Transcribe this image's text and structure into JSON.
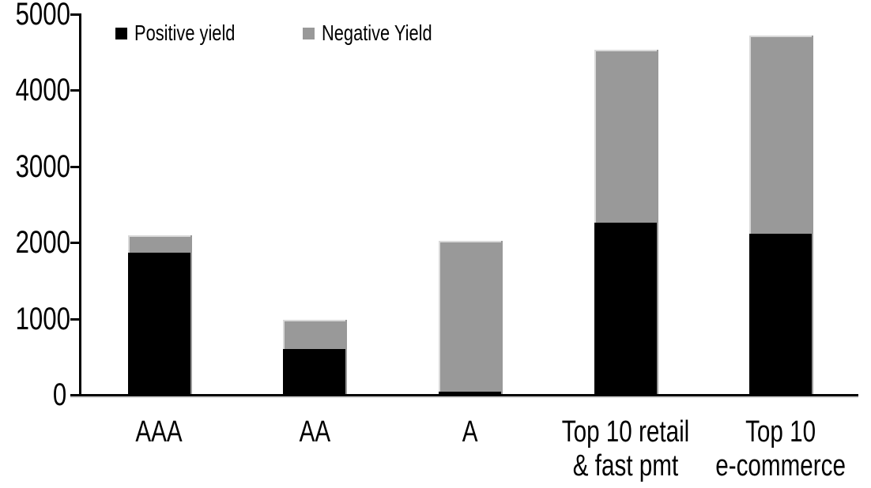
{
  "chart_data": {
    "type": "bar",
    "stacked": true,
    "categories": [
      "AAA",
      "AA",
      "A",
      "Top 10 retail\n& fast pmt",
      "Top 10\ne-commerce"
    ],
    "series": [
      {
        "name": "Positive yield",
        "color": "#000000",
        "values": [
          1870,
          600,
          40,
          2260,
          2120
        ]
      },
      {
        "name": "Negative Yield",
        "color": "#999999",
        "values": [
          230,
          390,
          1980,
          2270,
          2600
        ]
      }
    ],
    "ylim": [
      0,
      5000
    ],
    "yticks": [
      0,
      1000,
      2000,
      3000,
      4000,
      5000
    ],
    "ytick_labels": [
      "0",
      "1000",
      "2000",
      "3000",
      "4000",
      "5000"
    ],
    "grid": false,
    "legend_position": "top-left",
    "axis_color": "#000000",
    "background_color": "#ffffff",
    "negative_segment_edge_color": "#d9d9d9"
  }
}
